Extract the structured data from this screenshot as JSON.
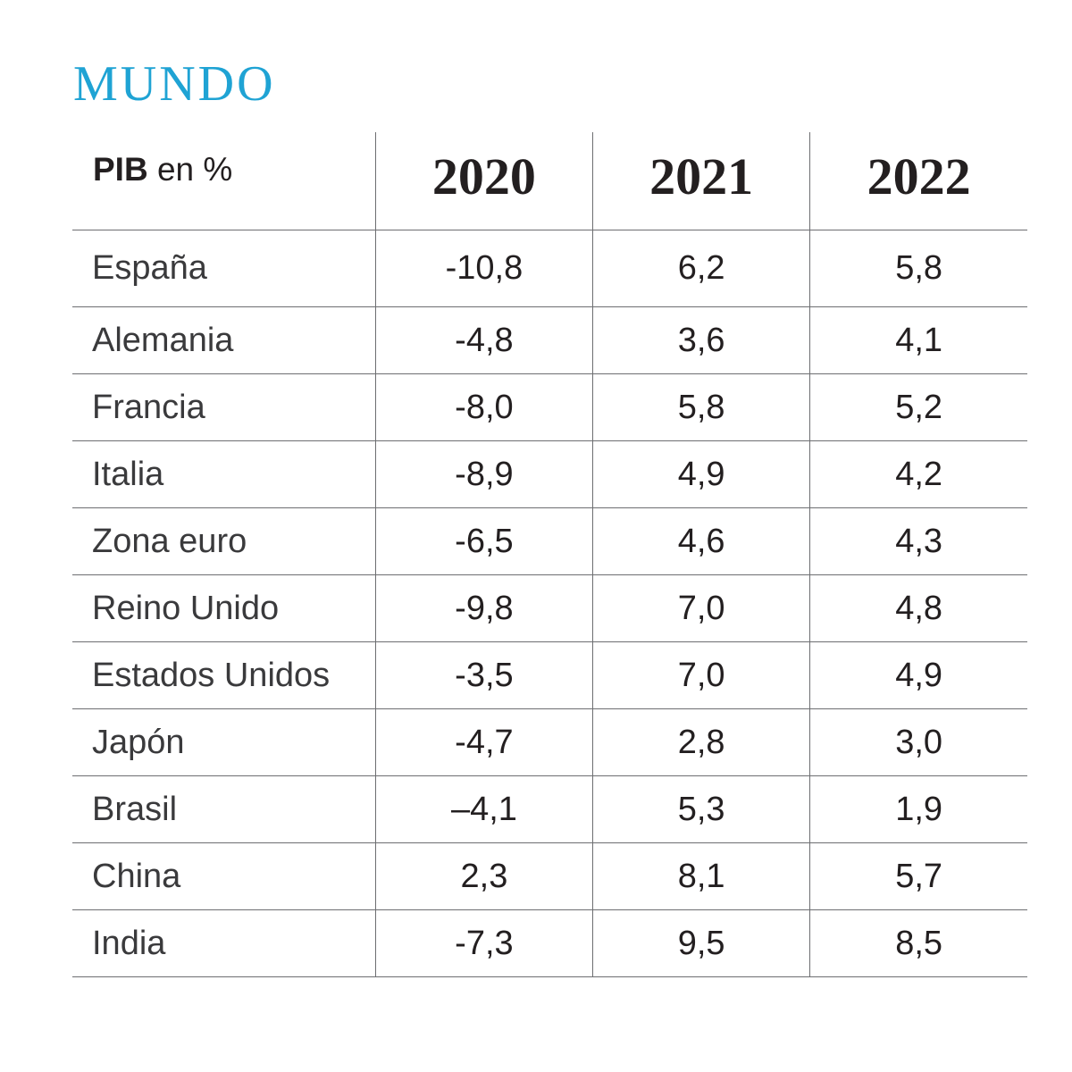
{
  "title": "MUNDO",
  "chart_data": {
    "type": "table",
    "title": "MUNDO",
    "header": {
      "label_bold": "PIB",
      "label_rest": " en %"
    },
    "columns": [
      "2020",
      "2021",
      "2022"
    ],
    "rows": [
      {
        "label": "España",
        "values": [
          "-10,8",
          "6,2",
          "5,8"
        ]
      },
      {
        "label": "Alemania",
        "values": [
          "-4,8",
          "3,6",
          "4,1"
        ]
      },
      {
        "label": "Francia",
        "values": [
          "-8,0",
          "5,8",
          "5,2"
        ]
      },
      {
        "label": "Italia",
        "values": [
          "-8,9",
          "4,9",
          "4,2"
        ]
      },
      {
        "label": "Zona euro",
        "values": [
          "-6,5",
          "4,6",
          "4,3"
        ]
      },
      {
        "label": "Reino Unido",
        "values": [
          "-9,8",
          "7,0",
          "4,8"
        ]
      },
      {
        "label": "Estados Unidos",
        "values": [
          "-3,5",
          "7,0",
          "4,9"
        ]
      },
      {
        "label": "Japón",
        "values": [
          "-4,7",
          "2,8",
          "3,0"
        ]
      },
      {
        "label": "Brasil",
        "values": [
          "–4,1",
          "5,3",
          "1,9"
        ]
      },
      {
        "label": "China",
        "values": [
          "2,3",
          "8,1",
          "5,7"
        ]
      },
      {
        "label": "India",
        "values": [
          "-7,3",
          "9,5",
          "8,5"
        ]
      }
    ]
  },
  "colors": {
    "title": "#1fa3d4",
    "text": "#231f20",
    "rules": "#6d6e71"
  }
}
